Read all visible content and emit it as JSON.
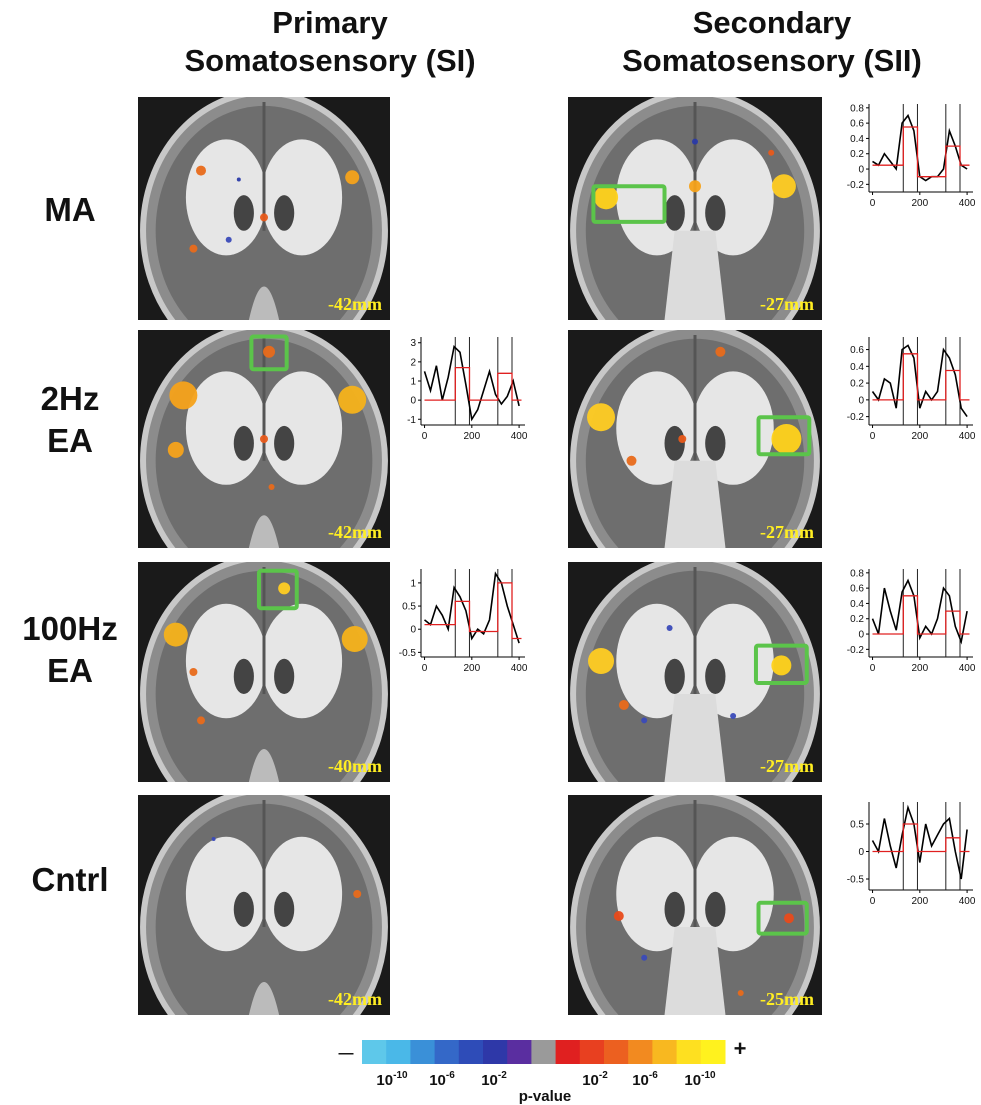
{
  "columns": [
    {
      "title_lines": [
        "Primary",
        "Somatosensory (SI)"
      ]
    },
    {
      "title_lines": [
        "Secondary",
        "Somatosensory (SII)"
      ]
    }
  ],
  "rows": [
    {
      "label_lines": [
        "MA"
      ],
      "panels": [
        {
          "slice": "-42mm"
        },
        {
          "slice": "-27mm",
          "plot": {
            "type": "line",
            "xlim": [
              -15,
              425
            ],
            "ylim": [
              -0.3,
              0.85
            ],
            "xticks": [
              0,
              200,
              400
            ],
            "yticks": [
              -0.2,
              0,
              0.2,
              0.4,
              0.6,
              0.8
            ],
            "series": [
              {
                "color": "#000000",
                "x": [
                  0,
                  25,
                  50,
                  75,
                  100,
                  125,
                  150,
                  175,
                  200,
                  225,
                  250,
                  275,
                  300,
                  325,
                  350,
                  375,
                  400
                ],
                "values": [
                  0.1,
                  0.05,
                  0.2,
                  0.1,
                  0.0,
                  0.6,
                  0.7,
                  0.5,
                  -0.1,
                  -0.15,
                  -0.1,
                  -0.1,
                  0.0,
                  0.5,
                  0.3,
                  0.05,
                  0.0
                ]
              },
              {
                "color": "#e02020",
                "x": [
                  0,
                  130,
                  130,
                  190,
                  190,
                  310,
                  310,
                  370,
                  370,
                  410
                ],
                "values": [
                  0.05,
                  0.05,
                  0.55,
                  0.55,
                  -0.1,
                  -0.1,
                  0.3,
                  0.3,
                  0.05,
                  0.05
                ]
              }
            ]
          }
        }
      ]
    },
    {
      "label_lines": [
        "2Hz",
        "EA"
      ],
      "panels": [
        {
          "slice": "-42mm",
          "plot": {
            "type": "line",
            "xlim": [
              -15,
              425
            ],
            "ylim": [
              -1.3,
              3.3
            ],
            "xticks": [
              0,
              200,
              400
            ],
            "yticks": [
              -1,
              0,
              1,
              2,
              3
            ],
            "series": [
              {
                "color": "#000000",
                "x": [
                  0,
                  25,
                  50,
                  75,
                  100,
                  125,
                  150,
                  175,
                  200,
                  225,
                  250,
                  275,
                  300,
                  325,
                  350,
                  375,
                  400
                ],
                "values": [
                  1.5,
                  0.5,
                  1.8,
                  0,
                  1.2,
                  2.8,
                  2.5,
                  0.8,
                  -1,
                  -0.5,
                  0.5,
                  1.5,
                  0.3,
                  -0.2,
                  0.2,
                  1.0,
                  -0.3
                ]
              },
              {
                "color": "#e02020",
                "x": [
                  0,
                  130,
                  130,
                  190,
                  190,
                  310,
                  310,
                  370,
                  370,
                  410
                ],
                "values": [
                  0,
                  0,
                  1.7,
                  1.7,
                  0,
                  0,
                  1.4,
                  1.4,
                  0,
                  0
                ]
              }
            ]
          }
        },
        {
          "slice": "-27mm",
          "plot": {
            "type": "line",
            "xlim": [
              -15,
              425
            ],
            "ylim": [
              -0.3,
              0.75
            ],
            "xticks": [
              0,
              200,
              400
            ],
            "yticks": [
              -0.2,
              0,
              0.2,
              0.4,
              0.6
            ],
            "series": [
              {
                "color": "#000000",
                "x": [
                  0,
                  25,
                  50,
                  75,
                  100,
                  125,
                  150,
                  175,
                  200,
                  225,
                  250,
                  275,
                  300,
                  325,
                  350,
                  375,
                  400
                ],
                "values": [
                  0.1,
                  0.0,
                  0.25,
                  0.2,
                  -0.1,
                  0.6,
                  0.65,
                  0.5,
                  -0.1,
                  0.1,
                  0.0,
                  0.1,
                  0.6,
                  0.5,
                  0.3,
                  -0.1,
                  -0.2
                ]
              },
              {
                "color": "#e02020",
                "x": [
                  0,
                  130,
                  130,
                  190,
                  190,
                  310,
                  310,
                  370,
                  370,
                  410
                ],
                "values": [
                  0,
                  0,
                  0.55,
                  0.55,
                  0,
                  0,
                  0.35,
                  0.35,
                  0,
                  0
                ]
              }
            ]
          }
        }
      ]
    },
    {
      "label_lines": [
        "100Hz",
        "EA"
      ],
      "panels": [
        {
          "slice": "-40mm",
          "plot": {
            "type": "line",
            "xlim": [
              -15,
              425
            ],
            "ylim": [
              -0.6,
              1.3
            ],
            "xticks": [
              0,
              200,
              400
            ],
            "yticks": [
              -0.5,
              0,
              0.5,
              1
            ],
            "series": [
              {
                "color": "#000000",
                "x": [
                  0,
                  25,
                  50,
                  75,
                  100,
                  125,
                  150,
                  175,
                  200,
                  225,
                  250,
                  275,
                  300,
                  325,
                  350,
                  375,
                  400
                ],
                "values": [
                  0.2,
                  0.1,
                  0.5,
                  0.3,
                  0.0,
                  0.9,
                  0.7,
                  0.4,
                  -0.2,
                  0.0,
                  -0.1,
                  0.2,
                  1.2,
                  1.0,
                  0.5,
                  0.1,
                  -0.3
                ]
              },
              {
                "color": "#e02020",
                "x": [
                  0,
                  130,
                  130,
                  190,
                  190,
                  310,
                  310,
                  370,
                  370,
                  410
                ],
                "values": [
                  0.1,
                  0.1,
                  0.6,
                  0.6,
                  -0.05,
                  -0.05,
                  1.0,
                  1.0,
                  -0.2,
                  -0.2
                ]
              }
            ]
          }
        },
        {
          "slice": "-27mm",
          "plot": {
            "type": "line",
            "xlim": [
              -15,
              425
            ],
            "ylim": [
              -0.3,
              0.85
            ],
            "xticks": [
              0,
              200,
              400
            ],
            "yticks": [
              -0.2,
              0,
              0.2,
              0.4,
              0.6,
              0.8
            ],
            "series": [
              {
                "color": "#000000",
                "x": [
                  0,
                  25,
                  50,
                  75,
                  100,
                  125,
                  150,
                  175,
                  200,
                  225,
                  250,
                  275,
                  300,
                  325,
                  350,
                  375,
                  400
                ],
                "values": [
                  0.2,
                  0.0,
                  0.6,
                  0.3,
                  0.05,
                  0.55,
                  0.7,
                  0.5,
                  -0.05,
                  0.1,
                  0.0,
                  0.2,
                  0.6,
                  0.5,
                  0.1,
                  -0.1,
                  0.3
                ]
              },
              {
                "color": "#e02020",
                "x": [
                  0,
                  130,
                  130,
                  190,
                  190,
                  310,
                  310,
                  370,
                  370,
                  410
                ],
                "values": [
                  0,
                  0,
                  0.5,
                  0.5,
                  0,
                  0,
                  0.3,
                  0.3,
                  0,
                  0
                ]
              }
            ]
          }
        }
      ]
    },
    {
      "label_lines": [
        "Cntrl"
      ],
      "panels": [
        {
          "slice": "-42mm"
        },
        {
          "slice": "-25mm",
          "plot": {
            "type": "line",
            "xlim": [
              -15,
              425
            ],
            "ylim": [
              -0.7,
              0.9
            ],
            "xticks": [
              0,
              200,
              400
            ],
            "yticks": [
              -0.5,
              0,
              0.5
            ],
            "series": [
              {
                "color": "#000000",
                "x": [
                  0,
                  25,
                  50,
                  75,
                  100,
                  125,
                  150,
                  175,
                  200,
                  225,
                  250,
                  275,
                  300,
                  325,
                  350,
                  375,
                  400
                ],
                "values": [
                  0.2,
                  0.0,
                  0.6,
                  0.1,
                  -0.3,
                  0.3,
                  0.8,
                  0.5,
                  -0.2,
                  0.5,
                  0.1,
                  0.3,
                  0.5,
                  0.6,
                  0.0,
                  -0.5,
                  0.4
                ]
              },
              {
                "color": "#e02020",
                "x": [
                  0,
                  130,
                  130,
                  190,
                  190,
                  310,
                  310,
                  370,
                  370,
                  410
                ],
                "values": [
                  0,
                  0,
                  0.5,
                  0.5,
                  0,
                  0,
                  0.25,
                  0.25,
                  0,
                  0
                ]
              }
            ]
          }
        }
      ]
    }
  ],
  "colorbar": {
    "minus": "—",
    "plus": "+",
    "title": "p-value",
    "ticks": [
      {
        "base": "10",
        "exp": "-10"
      },
      {
        "base": "10",
        "exp": "-6"
      },
      {
        "base": "10",
        "exp": "-2"
      },
      {
        "base": "10",
        "exp": "-2"
      },
      {
        "base": "10",
        "exp": "-6"
      },
      {
        "base": "10",
        "exp": "-10"
      }
    ]
  }
}
